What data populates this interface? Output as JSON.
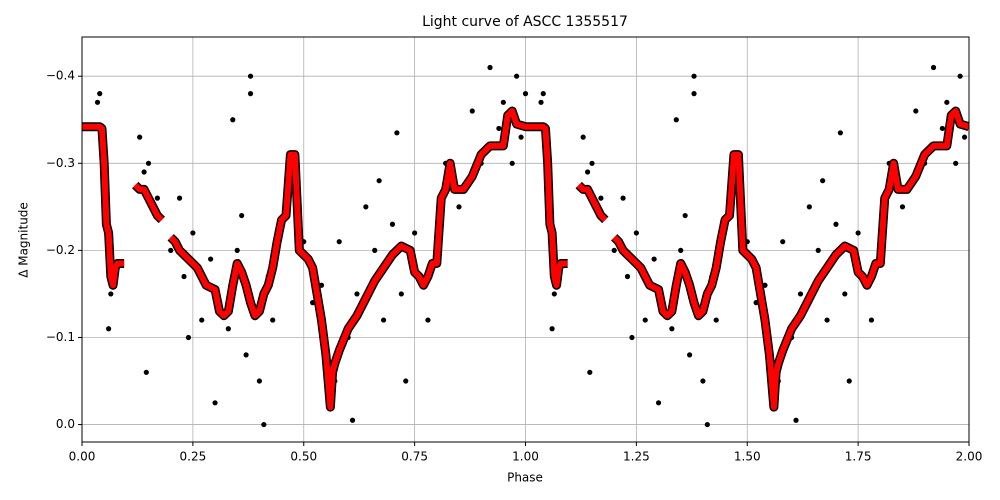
{
  "chart_data": {
    "type": "scatter",
    "title": "Light curve of ASCC 1355517",
    "x_label": "Phase",
    "y_label": "Δ Magnitude",
    "xlim": [
      0,
      2
    ],
    "ylim": [
      0.02,
      -0.445
    ],
    "xticks": [
      {
        "value": 0,
        "label": "0.00"
      },
      {
        "value": 0.25,
        "label": "0.25"
      },
      {
        "value": 0.5,
        "label": "0.50"
      },
      {
        "value": 0.75,
        "label": "0.75"
      },
      {
        "value": 1,
        "label": "1.00"
      },
      {
        "value": 1.25,
        "label": "1.25"
      },
      {
        "value": 1.5,
        "label": "1.50"
      },
      {
        "value": 1.75,
        "label": "1.75"
      },
      {
        "value": 2,
        "label": "2.00"
      }
    ],
    "yticks": [
      {
        "value": 0,
        "label": "0.0"
      },
      {
        "value": -0.1,
        "label": "−0.1"
      },
      {
        "value": -0.2,
        "label": "−0.2"
      },
      {
        "value": -0.3,
        "label": "−0.3"
      },
      {
        "value": -0.4,
        "label": "−0.4"
      }
    ],
    "grid": true,
    "points": {
      "color": "#000000",
      "x": [
        0.03,
        0.035,
        0.04,
        0.045,
        0.06,
        0.065,
        0.13,
        0.14,
        0.145,
        0.15,
        0.17,
        0.2,
        0.22,
        0.23,
        0.24,
        0.25,
        0.27,
        0.29,
        0.3,
        0.31,
        0.33,
        0.34,
        0.35,
        0.36,
        0.37,
        0.38,
        0.38,
        0.4,
        0.41,
        0.42,
        0.43,
        0.44,
        0.46,
        0.5,
        0.52,
        0.54,
        0.56,
        0.57,
        0.58,
        0.6,
        0.61,
        0.62,
        0.64,
        0.66,
        0.67,
        0.68,
        0.7,
        0.71,
        0.72,
        0.73,
        0.75,
        0.78,
        0.8,
        0.82,
        0.85,
        0.88,
        0.9,
        0.92,
        0.94,
        0.95,
        0.97,
        0.98,
        0.99,
        1.0,
        1.03,
        1.035,
        1.04,
        1.045,
        1.06,
        1.065,
        1.13,
        1.14,
        1.145,
        1.15,
        1.17,
        1.2,
        1.22,
        1.23,
        1.24,
        1.25,
        1.27,
        1.29,
        1.3,
        1.31,
        1.33,
        1.34,
        1.35,
        1.36,
        1.37,
        1.38,
        1.38,
        1.4,
        1.41,
        1.42,
        1.43,
        1.44,
        1.46,
        1.5,
        1.52,
        1.54,
        1.56,
        1.57,
        1.58,
        1.6,
        1.61,
        1.62,
        1.64,
        1.66,
        1.67,
        1.68,
        1.7,
        1.71,
        1.72,
        1.73,
        1.75,
        1.78,
        1.8,
        1.82,
        1.85,
        1.88,
        1.9,
        1.92,
        1.94,
        1.95,
        1.97,
        1.98,
        1.99
      ],
      "y": [
        -0.34,
        -0.37,
        -0.38,
        -0.32,
        -0.11,
        -0.15,
        -0.33,
        -0.29,
        -0.06,
        -0.3,
        -0.26,
        -0.2,
        -0.26,
        -0.17,
        -0.1,
        -0.22,
        -0.12,
        -0.19,
        -0.025,
        -0.14,
        -0.11,
        -0.35,
        -0.2,
        -0.24,
        -0.08,
        -0.4,
        -0.38,
        -0.05,
        0.0,
        -0.17,
        -0.12,
        -0.22,
        -0.27,
        -0.21,
        -0.14,
        -0.16,
        -0.03,
        -0.05,
        -0.21,
        -0.1,
        -0.005,
        -0.15,
        -0.25,
        -0.2,
        -0.28,
        -0.12,
        -0.23,
        -0.335,
        -0.15,
        -0.05,
        -0.22,
        -0.12,
        -0.21,
        -0.3,
        -0.25,
        -0.36,
        -0.3,
        -0.41,
        -0.34,
        -0.37,
        -0.3,
        -0.4,
        -0.33,
        -0.38,
        -0.34,
        -0.37,
        -0.38,
        -0.32,
        -0.11,
        -0.15,
        -0.33,
        -0.29,
        -0.06,
        -0.3,
        -0.26,
        -0.2,
        -0.26,
        -0.17,
        -0.1,
        -0.22,
        -0.12,
        -0.19,
        -0.025,
        -0.14,
        -0.11,
        -0.35,
        -0.2,
        -0.24,
        -0.08,
        -0.4,
        -0.38,
        -0.05,
        0.0,
        -0.17,
        -0.12,
        -0.22,
        -0.27,
        -0.21,
        -0.14,
        -0.16,
        -0.03,
        -0.05,
        -0.21,
        -0.1,
        -0.005,
        -0.15,
        -0.25,
        -0.2,
        -0.28,
        -0.12,
        -0.23,
        -0.335,
        -0.15,
        -0.05,
        -0.22,
        -0.12,
        -0.21,
        -0.3,
        -0.25,
        -0.36,
        -0.3,
        -0.41,
        -0.34,
        -0.37,
        -0.3,
        -0.4,
        -0.33
      ]
    },
    "model": {
      "color": "#ff0000",
      "edge_color": "#000000",
      "x": [
        0,
        0.04,
        0.045,
        0.05,
        0.055,
        0.06,
        0.065,
        0.07,
        0.075,
        0.08,
        0.095,
        0.11,
        0.12,
        0.13,
        0.14,
        0.15,
        0.16,
        0.17,
        0.18,
        0.19,
        0.2,
        0.21,
        0.22,
        0.24,
        0.26,
        0.27,
        0.28,
        0.3,
        0.31,
        0.32,
        0.33,
        0.34,
        0.35,
        0.36,
        0.37,
        0.38,
        0.39,
        0.4,
        0.41,
        0.42,
        0.43,
        0.44,
        0.45,
        0.46,
        0.47,
        0.48,
        0.49,
        0.5,
        0.51,
        0.52,
        0.53,
        0.54,
        0.55,
        0.56,
        0.565,
        0.57,
        0.58,
        0.6,
        0.62,
        0.64,
        0.66,
        0.68,
        0.7,
        0.72,
        0.74,
        0.75,
        0.76,
        0.77,
        0.78,
        0.79,
        0.8,
        0.81,
        0.82,
        0.83,
        0.84,
        0.86,
        0.88,
        0.9,
        0.92,
        0.95,
        0.96,
        0.97,
        0.98,
        1.0,
        1.04,
        1.045,
        1.05,
        1.055,
        1.06,
        1.065,
        1.07,
        1.075,
        1.08,
        1.095,
        1.11,
        1.12,
        1.13,
        1.14,
        1.15,
        1.16,
        1.17,
        1.18,
        1.19,
        1.2,
        1.21,
        1.22,
        1.24,
        1.26,
        1.27,
        1.28,
        1.3,
        1.31,
        1.32,
        1.33,
        1.34,
        1.35,
        1.36,
        1.37,
        1.38,
        1.39,
        1.4,
        1.41,
        1.42,
        1.43,
        1.44,
        1.45,
        1.46,
        1.47,
        1.48,
        1.49,
        1.5,
        1.51,
        1.52,
        1.53,
        1.54,
        1.55,
        1.56,
        1.565,
        1.57,
        1.58,
        1.6,
        1.62,
        1.64,
        1.66,
        1.68,
        1.7,
        1.72,
        1.74,
        1.75,
        1.76,
        1.77,
        1.78,
        1.79,
        1.8,
        1.81,
        1.82,
        1.83,
        1.84,
        1.86,
        1.88,
        1.9,
        1.92,
        1.95,
        1.96,
        1.97,
        1.98,
        2.0
      ],
      "y": [
        -0.342,
        -0.342,
        -0.34,
        -0.3,
        -0.23,
        -0.22,
        -0.17,
        -0.16,
        -0.18,
        -0.185,
        -0.185,
        null,
        -0.275,
        -0.27,
        -0.27,
        -0.26,
        -0.25,
        -0.24,
        -0.235,
        null,
        -0.215,
        -0.21,
        -0.2,
        -0.19,
        -0.18,
        -0.17,
        -0.16,
        -0.155,
        -0.13,
        -0.125,
        -0.13,
        -0.16,
        -0.185,
        -0.175,
        -0.16,
        -0.14,
        -0.125,
        -0.13,
        -0.15,
        -0.16,
        -0.18,
        -0.21,
        -0.235,
        -0.24,
        -0.31,
        -0.31,
        -0.2,
        -0.195,
        -0.19,
        -0.18,
        -0.15,
        -0.12,
        -0.08,
        -0.02,
        -0.06,
        -0.07,
        -0.085,
        -0.11,
        -0.125,
        -0.145,
        -0.165,
        -0.18,
        -0.195,
        -0.205,
        -0.2,
        -0.175,
        -0.17,
        -0.16,
        -0.17,
        -0.185,
        -0.185,
        -0.26,
        -0.27,
        -0.3,
        -0.27,
        -0.27,
        -0.285,
        -0.31,
        -0.32,
        -0.32,
        -0.355,
        -0.36,
        -0.345,
        -0.342,
        -0.342,
        -0.34,
        -0.3,
        -0.23,
        -0.22,
        -0.17,
        -0.16,
        -0.18,
        -0.185,
        -0.185,
        null,
        -0.275,
        -0.27,
        -0.27,
        -0.26,
        -0.25,
        -0.24,
        -0.235,
        null,
        -0.215,
        -0.21,
        -0.2,
        -0.19,
        -0.18,
        -0.17,
        -0.16,
        -0.155,
        -0.13,
        -0.125,
        -0.13,
        -0.16,
        -0.185,
        -0.175,
        -0.16,
        -0.14,
        -0.125,
        -0.13,
        -0.15,
        -0.16,
        -0.18,
        -0.21,
        -0.235,
        -0.24,
        -0.31,
        -0.31,
        -0.2,
        -0.195,
        -0.19,
        -0.18,
        -0.15,
        -0.12,
        -0.08,
        -0.02,
        -0.06,
        -0.07,
        -0.085,
        -0.11,
        -0.125,
        -0.145,
        -0.165,
        -0.18,
        -0.195,
        -0.205,
        -0.2,
        -0.175,
        -0.17,
        -0.16,
        -0.17,
        -0.185,
        -0.185,
        -0.26,
        -0.27,
        -0.3,
        -0.27,
        -0.27,
        -0.285,
        -0.31,
        -0.32,
        -0.32,
        -0.355,
        -0.36,
        -0.345,
        -0.342
      ]
    }
  }
}
